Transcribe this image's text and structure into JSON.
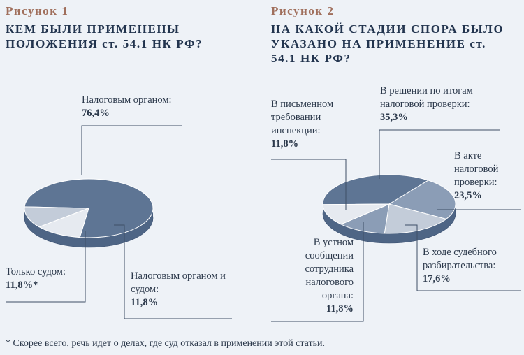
{
  "figure1": {
    "number": "Рисунок 1",
    "title": "КЕМ БЫЛИ ПРИМЕНЕНЫ ПОЛОЖЕНИЯ ст. 54.1 НК РФ?"
  },
  "figure2": {
    "number": "Рисунок 2",
    "title": "НА КАКОЙ СТАДИИ СПОРА БЫЛО УКАЗАНО НА ПРИМЕНЕНИЕ ст. 54.1 НК РФ?"
  },
  "footnote": "* Скорее всего, речь идет о делах, где суд отказал в применении этой статьи.",
  "colors": {
    "dark": "#5e7594",
    "mid": "#8b9db6",
    "light": "#c3ccd9",
    "pale": "#e6eaf0",
    "accent": "#a06f5c"
  },
  "chart_data": [
    {
      "type": "pie",
      "title": "КЕМ БЫЛИ ПРИМЕНЕНЫ ПОЛОЖЕНИЯ ст. 54.1 НК РФ?",
      "slices": [
        {
          "label": "Налоговым органом:",
          "value_text": "76,4%",
          "value": 76.4,
          "color": "#5e7594"
        },
        {
          "label": "Налоговым органом и судом:",
          "value_text": "11,8%",
          "value": 11.8,
          "color": "#c3ccd9"
        },
        {
          "label": "Только судом:",
          "value_text": "11,8%*",
          "value": 11.8,
          "color": "#e6eaf0"
        }
      ]
    },
    {
      "type": "pie",
      "title": "НА КАКОЙ СТАДИИ СПОРА БЫЛО УКАЗАНО НА ПРИМЕНЕНИЕ ст. 54.1 НК РФ?",
      "slices": [
        {
          "label": "В решении по итогам налоговой проверки:",
          "value_text": "35,3%",
          "value": 35.3,
          "color": "#5e7594"
        },
        {
          "label": "В акте налоговой проверки:",
          "value_text": "23,5%",
          "value": 23.5,
          "color": "#8b9db6"
        },
        {
          "label": "В ходе судебного разбирательства:",
          "value_text": "17,6%",
          "value": 17.6,
          "color": "#c3ccd9"
        },
        {
          "label": "В устном сообщении сотрудника налогового органа:",
          "value_text": "11,8%",
          "value": 11.8,
          "color": "#8b9db6"
        },
        {
          "label": "В письменном требовании инспекции:",
          "value_text": "11,8%",
          "value": 11.8,
          "color": "#e6eaf0"
        }
      ]
    }
  ]
}
